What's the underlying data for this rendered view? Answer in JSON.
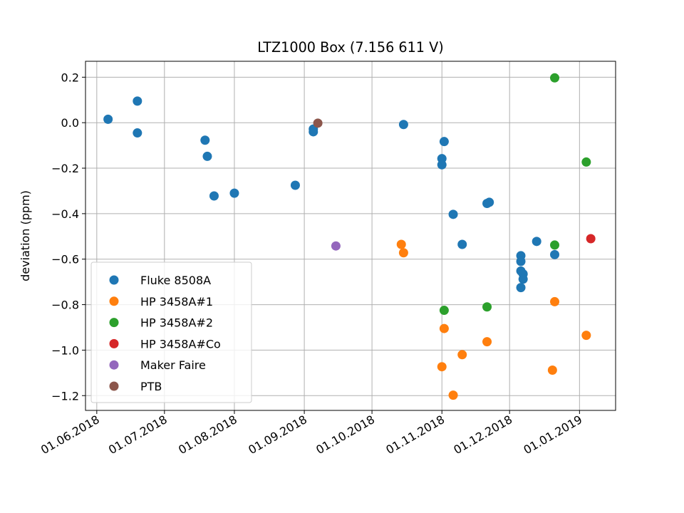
{
  "chart_data": {
    "type": "scatter",
    "title": "LTZ1000 Box (7.156 611 V)",
    "xlabel": "",
    "ylabel": "deviation (ppm)",
    "x_type": "date",
    "xlim": [
      "2018-05-27",
      "2019-01-17"
    ],
    "ylim": [
      -1.265,
      0.27
    ],
    "xticks": [
      {
        "date": "2018-06-01",
        "label": "01.06.2018"
      },
      {
        "date": "2018-07-01",
        "label": "01.07.2018"
      },
      {
        "date": "2018-08-01",
        "label": "01.08.2018"
      },
      {
        "date": "2018-09-01",
        "label": "01.09.2018"
      },
      {
        "date": "2018-10-01",
        "label": "01.10.2018"
      },
      {
        "date": "2018-11-01",
        "label": "01.11.2018"
      },
      {
        "date": "2018-12-01",
        "label": "01.12.2018"
      },
      {
        "date": "2019-01-01",
        "label": "01.01.2019"
      }
    ],
    "yticks": [
      {
        "value": 0.2,
        "label": "0.2"
      },
      {
        "value": 0.0,
        "label": "0.0"
      },
      {
        "value": -0.2,
        "label": "−0.2"
      },
      {
        "value": -0.4,
        "label": "−0.4"
      },
      {
        "value": -0.6,
        "label": "−0.6"
      },
      {
        "value": -0.8,
        "label": "−0.8"
      },
      {
        "value": -1.0,
        "label": "−1.0"
      },
      {
        "value": -1.2,
        "label": "−1.2"
      }
    ],
    "grid": true,
    "legend_position": "lower-left",
    "series": [
      {
        "name": "Fluke 8508A",
        "color": "#1f77b4",
        "points": [
          {
            "x": "2018-06-06",
            "y": 0.015
          },
          {
            "x": "2018-06-19",
            "y": 0.095
          },
          {
            "x": "2018-06-19",
            "y": -0.045
          },
          {
            "x": "2018-07-19",
            "y": -0.077
          },
          {
            "x": "2018-07-20",
            "y": -0.148
          },
          {
            "x": "2018-07-23",
            "y": -0.322
          },
          {
            "x": "2018-08-01",
            "y": -0.31
          },
          {
            "x": "2018-08-28",
            "y": -0.275
          },
          {
            "x": "2018-09-05",
            "y": -0.028
          },
          {
            "x": "2018-09-05",
            "y": -0.04
          },
          {
            "x": "2018-10-15",
            "y": -0.008
          },
          {
            "x": "2018-11-01",
            "y": -0.158
          },
          {
            "x": "2018-11-01",
            "y": -0.185
          },
          {
            "x": "2018-11-02",
            "y": -0.083
          },
          {
            "x": "2018-11-06",
            "y": -0.403
          },
          {
            "x": "2018-11-10",
            "y": -0.535
          },
          {
            "x": "2018-11-21",
            "y": -0.355
          },
          {
            "x": "2018-11-22",
            "y": -0.35
          },
          {
            "x": "2018-12-06",
            "y": -0.585
          },
          {
            "x": "2018-12-06",
            "y": -0.61
          },
          {
            "x": "2018-12-06",
            "y": -0.652
          },
          {
            "x": "2018-12-06",
            "y": -0.725
          },
          {
            "x": "2018-12-07",
            "y": -0.665
          },
          {
            "x": "2018-12-07",
            "y": -0.688
          },
          {
            "x": "2018-12-13",
            "y": -0.522
          },
          {
            "x": "2018-12-21",
            "y": -0.58
          }
        ]
      },
      {
        "name": "HP 3458A#1",
        "color": "#ff7f0e",
        "points": [
          {
            "x": "2018-10-14",
            "y": -0.535
          },
          {
            "x": "2018-10-15",
            "y": -0.572
          },
          {
            "x": "2018-11-01",
            "y": -1.073
          },
          {
            "x": "2018-11-02",
            "y": -0.905
          },
          {
            "x": "2018-11-06",
            "y": -1.198
          },
          {
            "x": "2018-11-10",
            "y": -1.02
          },
          {
            "x": "2018-11-21",
            "y": -0.963
          },
          {
            "x": "2018-12-20",
            "y": -1.088
          },
          {
            "x": "2018-12-21",
            "y": -0.787
          },
          {
            "x": "2019-01-04",
            "y": -0.935
          }
        ]
      },
      {
        "name": "HP 3458A#2",
        "color": "#2ca02c",
        "points": [
          {
            "x": "2018-11-02",
            "y": -0.825
          },
          {
            "x": "2018-11-21",
            "y": -0.81
          },
          {
            "x": "2018-12-21",
            "y": 0.197
          },
          {
            "x": "2018-12-21",
            "y": -0.538
          },
          {
            "x": "2019-01-04",
            "y": -0.173
          }
        ]
      },
      {
        "name": "HP 3458A#Co",
        "color": "#d62728",
        "points": [
          {
            "x": "2019-01-06",
            "y": -0.51
          }
        ]
      },
      {
        "name": "Maker Faire",
        "color": "#9467bd",
        "points": [
          {
            "x": "2018-09-15",
            "y": -0.542
          }
        ]
      },
      {
        "name": "PTB",
        "color": "#8c564b",
        "points": [
          {
            "x": "2018-09-07",
            "y": -0.002
          }
        ]
      }
    ]
  }
}
